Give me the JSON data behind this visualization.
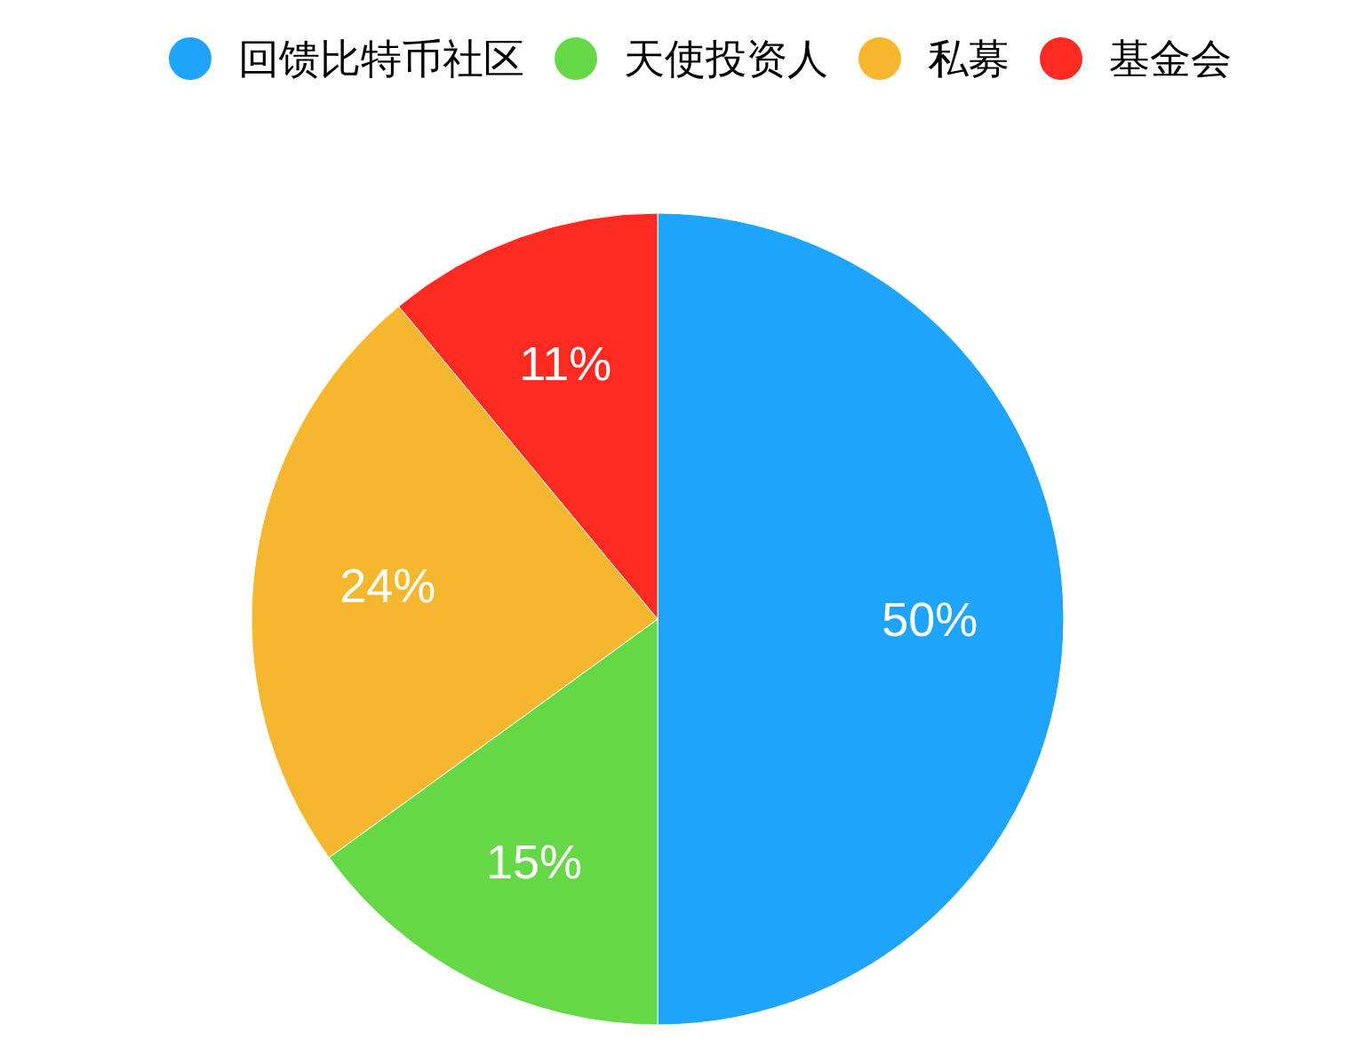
{
  "chart_data": {
    "type": "pie",
    "categories": [
      "回馈比特币社区",
      "天使投资人",
      "私募",
      "基金会"
    ],
    "values": [
      50,
      15,
      24,
      11
    ],
    "colors": [
      "#1fa4fc",
      "#65d848",
      "#f5b72d",
      "#fd2a21"
    ],
    "value_labels": [
      "50%",
      "15%",
      "24%",
      "11%"
    ],
    "legend": "top"
  }
}
